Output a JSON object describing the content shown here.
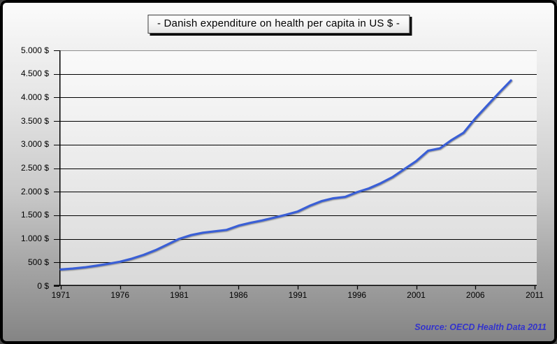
{
  "title": "-  Danish expenditure on health per capita in US $  -",
  "source": "Source: OECD Health Data 2011",
  "colors": {
    "line": "#3a5fd6",
    "source_text": "#3333cc",
    "grid": "#000000",
    "plot_top_border": "#909090"
  },
  "chart_data": {
    "type": "line",
    "title": "Danish expenditure on health per capita in US $",
    "xlabel": "",
    "ylabel": "",
    "xlim": [
      1971,
      2011
    ],
    "ylim": [
      0,
      5000
    ],
    "grid": "horizontal-only",
    "legend": "none",
    "line_color": "#3a5fd6",
    "x": [
      1971,
      1972,
      1973,
      1974,
      1975,
      1976,
      1977,
      1978,
      1979,
      1980,
      1981,
      1982,
      1983,
      1984,
      1985,
      1986,
      1987,
      1988,
      1989,
      1990,
      1991,
      1992,
      1993,
      1994,
      1995,
      1996,
      1997,
      1998,
      1999,
      2000,
      2001,
      2002,
      2003,
      2004,
      2005,
      2006,
      2007,
      2008,
      2009
    ],
    "series": [
      {
        "name": "Danish expenditure on health per capita in US $",
        "values": [
          350,
          370,
          395,
          430,
          470,
          515,
          580,
          660,
          760,
          880,
          1000,
          1080,
          1130,
          1160,
          1190,
          1280,
          1340,
          1390,
          1450,
          1510,
          1580,
          1700,
          1800,
          1860,
          1890,
          1990,
          2070,
          2180,
          2310,
          2480,
          2650,
          2870,
          2920,
          3100,
          3250,
          3560,
          3830,
          4100,
          4360
        ]
      }
    ],
    "x_tick_values": [
      1971,
      1976,
      1981,
      1986,
      1991,
      1996,
      2001,
      2006,
      2011
    ],
    "x_tick_labels": [
      "1971",
      "1976",
      "1981",
      "1986",
      "1991",
      "1996",
      "2001",
      "2006",
      "2011"
    ],
    "y_tick_values": [
      0,
      500,
      1000,
      1500,
      2000,
      2500,
      3000,
      3500,
      4000,
      4500,
      5000
    ],
    "y_tick_labels": [
      "0 $",
      "500 $",
      "1.000 $",
      "1.500 $",
      "2.000 $",
      "2.500 $",
      "3.000 $",
      "3.500 $",
      "4.000 $",
      "4.500 $",
      "5.000 $"
    ],
    "source_note": "Source: OECD Health Data 2011"
  }
}
